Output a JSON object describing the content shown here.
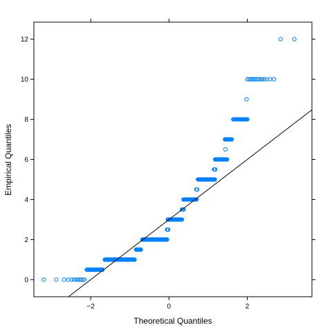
{
  "chart_data": {
    "type": "scatter",
    "subtype": "qq-plot",
    "title": "",
    "xlabel": "Theoretical Quantiles",
    "ylabel": "Empirical Quantiles",
    "xlim": [
      -3.45,
      3.65
    ],
    "ylim": [
      -0.85,
      12.85
    ],
    "x_ticks": [
      -2,
      0,
      2
    ],
    "y_ticks": [
      0,
      2,
      4,
      6,
      8,
      10,
      12
    ],
    "grid": false,
    "legend": "none",
    "point_color": "#0080ff",
    "line_color": "#000000",
    "reference_line": {
      "intercept": 3.0,
      "slope": 1.5
    },
    "point_groups": [
      {
        "y": 0,
        "x": [
          -3.2,
          -2.88,
          -2.68,
          -2.57,
          -2.49,
          -2.43,
          -2.37,
          -2.32,
          -2.28,
          -2.24,
          -2.2,
          -2.16
        ]
      },
      {
        "y": 0.5,
        "from": -2.1,
        "to": -1.7,
        "n": 24
      },
      {
        "y": 1,
        "from": -1.64,
        "to": -0.88,
        "n": 70
      },
      {
        "y": 1.5,
        "from": -0.84,
        "to": -0.72,
        "n": 10
      },
      {
        "y": 2,
        "from": -0.68,
        "to": -0.05,
        "n": 60
      },
      {
        "y": 2.5,
        "from": -0.05,
        "to": -0.02,
        "n": 3
      },
      {
        "y": 3,
        "from": -0.03,
        "to": 0.33,
        "n": 40
      },
      {
        "y": 3.5,
        "from": 0.33,
        "to": 0.37,
        "n": 4
      },
      {
        "y": 4,
        "from": 0.37,
        "to": 0.7,
        "n": 35
      },
      {
        "y": 4.5,
        "from": 0.7,
        "to": 0.72,
        "n": 3
      },
      {
        "y": 5,
        "from": 0.74,
        "to": 1.17,
        "n": 40
      },
      {
        "y": 5.5,
        "from": 1.15,
        "to": 1.18,
        "n": 3
      },
      {
        "y": 6,
        "from": 1.18,
        "to": 1.48,
        "n": 28
      },
      {
        "y": 6.5,
        "from": 1.44,
        "to": 1.44,
        "n": 1
      },
      {
        "y": 7,
        "from": 1.43,
        "to": 1.6,
        "n": 14
      },
      {
        "y": 8,
        "from": 1.64,
        "to": 2.0,
        "n": 22
      },
      {
        "y": 9,
        "from": 1.98,
        "to": 1.98,
        "n": 1
      },
      {
        "y": 10,
        "x": [
          2.0,
          2.04,
          2.08,
          2.12,
          2.16,
          2.2,
          2.24,
          2.28,
          2.33,
          2.38,
          2.44,
          2.5,
          2.58,
          2.68
        ]
      },
      {
        "y": 12,
        "x": [
          2.85,
          3.2
        ]
      }
    ]
  }
}
